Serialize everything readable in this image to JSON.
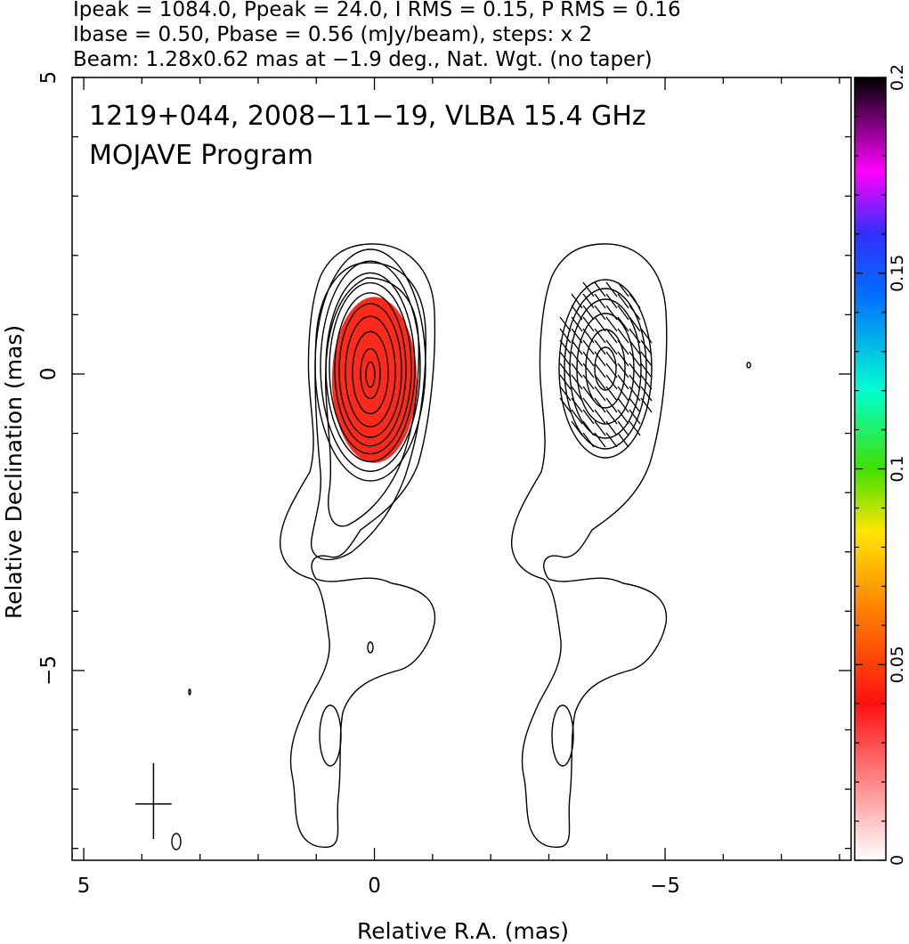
{
  "header": {
    "line1": "Ipeak = 1084.0, Ppeak = 24.0, I RMS = 0.15, P RMS = 0.16",
    "line2": "Ibase = 0.50, Pbase = 0.56 (mJy/beam), steps: x 2",
    "line3": "Beam: 1.28x0.62 mas at −1.9 deg., Nat. Wgt. (no taper)"
  },
  "annotations": {
    "source": "1219+044, 2008−11−19, VLBA 15.4 GHz",
    "program": "MOJAVE Program"
  },
  "chart_data": {
    "type": "heatmap",
    "xlabel": "Relative R.A. (mas)",
    "ylabel": "Relative Declination (mas)",
    "xlim": [
      5.2,
      -8.2
    ],
    "ylim": [
      -8.2,
      5
    ],
    "xticks": [
      {
        "value": 5,
        "label": "5"
      },
      {
        "value": 0,
        "label": "0"
      },
      {
        "value": -5,
        "label": "−5"
      }
    ],
    "yticks": [
      {
        "value": 5,
        "label": "5"
      },
      {
        "value": 0,
        "label": "0"
      },
      {
        "value": -5,
        "label": "−5"
      }
    ],
    "colorbar": {
      "range": [
        0,
        0.2
      ],
      "ticks": [
        {
          "value": 0,
          "label": "0"
        },
        {
          "value": 0.05,
          "label": "0.05"
        },
        {
          "value": 0.1,
          "label": "0.1"
        },
        {
          "value": 0.15,
          "label": "0.15"
        },
        {
          "value": 0.2,
          "label": "0.2"
        }
      ]
    },
    "panels": [
      {
        "name": "Stokes I contours with fractional polarization color",
        "center_ra": 0
      },
      {
        "name": "Polarized intensity contours with EVPA ticks",
        "center_ra": -4
      }
    ],
    "peak_values": {
      "Ipeak": 1084.0,
      "Ppeak": 24.0,
      "unit": "mJy/beam"
    },
    "beam": {
      "major_mas": 1.28,
      "minor_mas": 0.62,
      "pa_deg": -1.9,
      "center_ra": 3.8,
      "center_dec": -7.2
    },
    "pol_color_region": {
      "center_ra": 0,
      "center_dec": -0.1,
      "half_width_mas": 0.73,
      "half_height_mas": 1.4,
      "fraction": 0.03
    }
  }
}
